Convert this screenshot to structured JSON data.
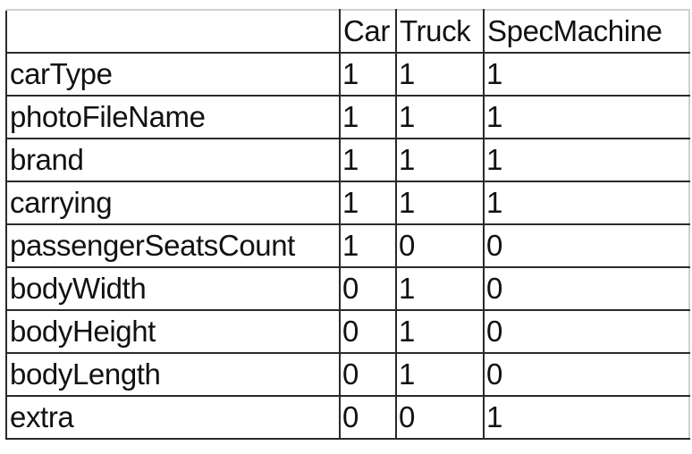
{
  "table": {
    "columns": [
      "",
      "Car",
      "Truck",
      "SpecMachine"
    ],
    "rows": [
      {
        "label": "carType",
        "values": [
          "1",
          "1",
          "1"
        ]
      },
      {
        "label": "photoFileName",
        "values": [
          "1",
          "1",
          "1"
        ]
      },
      {
        "label": "brand",
        "values": [
          "1",
          "1",
          "1"
        ]
      },
      {
        "label": "carrying",
        "values": [
          "1",
          "1",
          "1"
        ]
      },
      {
        "label": "passengerSeatsCount",
        "values": [
          "1",
          "0",
          "0"
        ]
      },
      {
        "label": "bodyWidth",
        "values": [
          "0",
          "1",
          "0"
        ]
      },
      {
        "label": "bodyHeight",
        "values": [
          "0",
          "1",
          "0"
        ]
      },
      {
        "label": "bodyLength",
        "values": [
          "0",
          "1",
          "0"
        ]
      },
      {
        "label": "extra",
        "values": [
          "0",
          "0",
          "1"
        ]
      }
    ]
  }
}
